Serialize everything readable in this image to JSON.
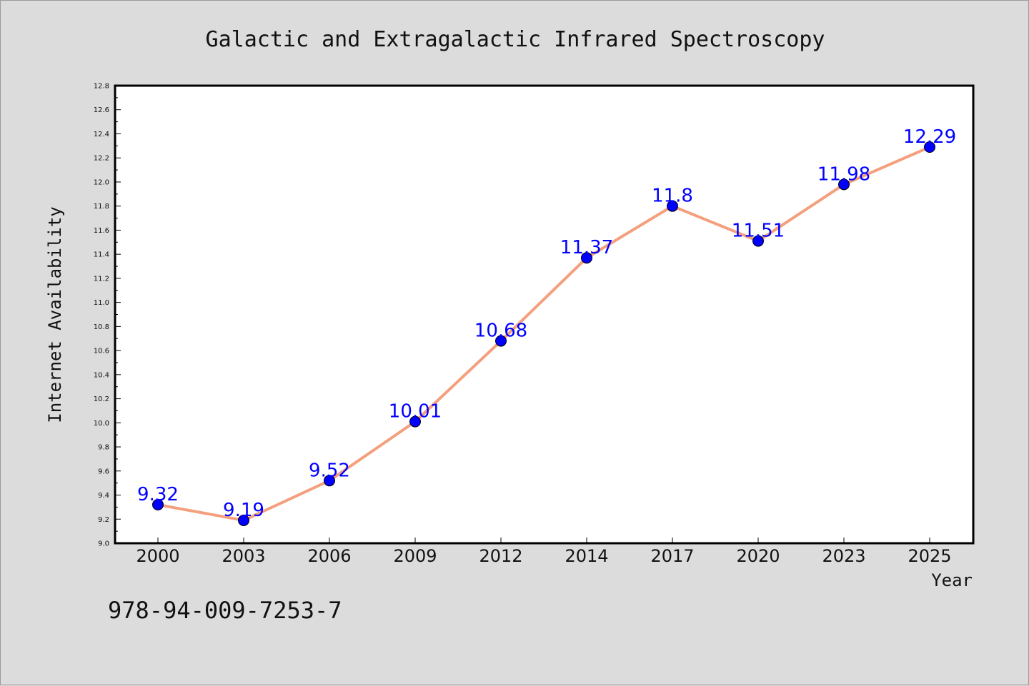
{
  "chart_data": {
    "type": "line",
    "title": "Galactic and Extragalactic Infrared Spectroscopy",
    "xlabel": "Year",
    "ylabel": "Internet Availability",
    "categories": [
      "2000",
      "2003",
      "2006",
      "2009",
      "2012",
      "2014",
      "2017",
      "2020",
      "2023",
      "2025"
    ],
    "series": [
      {
        "values": [
          9.32,
          9.19,
          9.52,
          10.01,
          10.68,
          11.37,
          11.8,
          11.51,
          11.98,
          12.29
        ],
        "data_labels": [
          "9.32",
          "9.19",
          "9.52",
          "10.01",
          "10.68",
          "11.37",
          "11.8",
          "11.51",
          "11.98",
          "12.29"
        ],
        "line_color": "#f4a07e",
        "marker_color": "#0000ff"
      }
    ],
    "ylim": [
      9.0,
      12.8
    ],
    "yticks": [
      "9.0",
      "9.2",
      "9.4",
      "9.6",
      "9.8",
      "10.0",
      "10.2",
      "10.4",
      "10.6",
      "10.8",
      "11.0",
      "11.2",
      "11.4",
      "11.6",
      "11.8",
      "12.0",
      "12.2",
      "12.4",
      "12.6",
      "12.8"
    ],
    "grid": false,
    "legend": "none"
  },
  "footer": {
    "isbn": "978-94-009-7253-7"
  },
  "colors": {
    "background": "#dcdcdc",
    "plot_background": "#ffffff",
    "line": "#f4a07e",
    "marker": "#0000ff",
    "data_label": "#0000ff"
  }
}
